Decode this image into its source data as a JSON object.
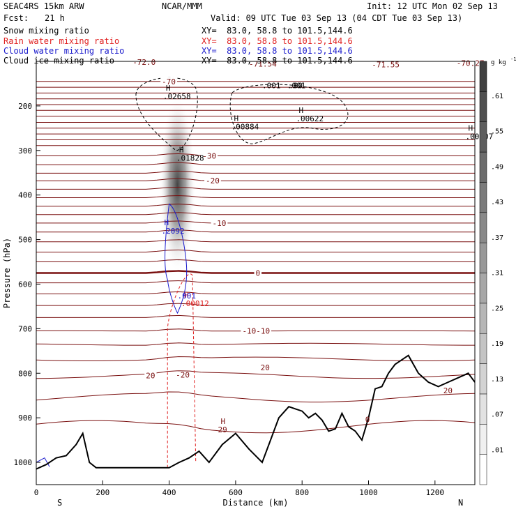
{
  "header": {
    "model": "SEAC4RS 15km ARW",
    "center": "NCAR/MMM",
    "init": "Init: 12 UTC Mon 02 Sep 13",
    "fcst_label": "Fcst:",
    "fcst_value": "21 h",
    "valid": "Valid: 09 UTC Tue 03 Sep 13 (04 CDT Tue 03 Sep 13)"
  },
  "legend": [
    {
      "name": "Snow mixing ratio",
      "color": "#000000",
      "xy": "XY=  83.0, 58.8 to 101.5,144.6"
    },
    {
      "name": "Rain water mixing ratio",
      "color": "#e02020",
      "xy": "XY=  83.0, 58.8 to 101.5,144.6"
    },
    {
      "name": "Cloud water mixing ratio",
      "color": "#1a1acc",
      "xy": "XY=  83.0, 58.8 to 101.5,144.6"
    },
    {
      "name": "Cloud ice mixing ratio",
      "color": "#000000",
      "xy": "XY=  83.0, 58.8 to 101.5,144.6"
    }
  ],
  "colors": {
    "temperature": "#7a1010",
    "terrain": "#000000",
    "rain": "#e02020",
    "cloud_water": "#1a1acc",
    "ice": "#000000"
  },
  "chart_data": {
    "type": "heatmap",
    "title": "SEAC4RS 15km ARW",
    "xlabel": "Distance (km)",
    "ylabel": "Pressure (hPa)",
    "xlim": [
      0,
      1320
    ],
    "ylim": [
      1050,
      100
    ],
    "x_ticks": [
      0,
      200,
      400,
      600,
      800,
      1000,
      1200
    ],
    "y_ticks": [
      200,
      300,
      400,
      500,
      600,
      700,
      800,
      900,
      1000
    ],
    "x_end_labels": {
      "left": "S",
      "right": "N"
    },
    "colorbar": {
      "unit_label": "g kg",
      "unit_sup": "-1",
      "ticks": [
        ".01",
        ".07",
        ".13",
        ".19",
        ".25",
        ".31",
        ".37",
        ".43",
        ".49",
        ".55",
        ".61"
      ],
      "levels": 14
    },
    "temperature_levels": [
      {
        "p": 145,
        "label": "-70",
        "x": 378
      },
      {
        "p": 158
      },
      {
        "p": 171
      },
      {
        "p": 184
      },
      {
        "p": 197
      },
      {
        "p": 210
      },
      {
        "p": 223
      },
      {
        "p": 237
      },
      {
        "p": 250
      },
      {
        "p": 263
      },
      {
        "p": 276
      },
      {
        "p": 289
      },
      {
        "p": 312,
        "label": "-30",
        "x": 500
      },
      {
        "p": 332
      },
      {
        "p": 351
      },
      {
        "p": 368,
        "label": "-20",
        "x": 510
      },
      {
        "p": 387
      },
      {
        "p": 406
      },
      {
        "p": 425
      },
      {
        "p": 444
      },
      {
        "p": 463,
        "label": "-10",
        "x": 530
      },
      {
        "p": 483
      },
      {
        "p": 505
      },
      {
        "p": 528
      },
      {
        "p": 550
      },
      {
        "p": 575,
        "label": "0",
        "x": 660,
        "bold": true
      },
      {
        "p": 597
      },
      {
        "p": 622
      },
      {
        "p": 648
      },
      {
        "p": 675
      },
      {
        "p": 705,
        "label": "-10-10",
        "x": 620
      },
      {
        "p": 735
      },
      {
        "p": 768
      },
      {
        "p": 805,
        "label": "20",
        "x": 330
      },
      {
        "p": 855
      },
      {
        "p": 920
      }
    ],
    "temperature_labels": [
      {
        "text": "-71.54",
        "x": 640,
        "p": 112
      },
      {
        "text": "-71.55",
        "x": 1010,
        "p": 113
      },
      {
        "text": "-70.27",
        "x": 1265,
        "p": 110
      },
      {
        "text": "-72.0",
        "x": 290,
        "p": 108
      },
      {
        "text": "-20",
        "x": 420,
        "p": 810
      },
      {
        "text": "20",
        "x": 675,
        "p": 793
      },
      {
        "text": "20",
        "x": 1225,
        "p": 845
      },
      {
        "text": "0",
        "x": 990,
        "p": 910
      }
    ],
    "extrema": [
      {
        "letter": "H",
        "value": ".02658",
        "x": 390,
        "p": 180,
        "color": "#000000"
      },
      {
        "letter": "H",
        "value": ".00884",
        "x": 595,
        "p": 248,
        "color": "#000000"
      },
      {
        "letter": "H",
        "value": ".00622",
        "x": 790,
        "p": 230,
        "color": "#000000"
      },
      {
        "letter": "H",
        "value": ".00007",
        "x": 1300,
        "p": 270,
        "color": "#000000"
      },
      {
        "letter": "H",
        "value": ".01828",
        "x": 430,
        "p": 318,
        "color": "#000000"
      },
      {
        "letter": "H",
        "value": ".2092",
        "x": 385,
        "p": 482,
        "color": "#1a1acc"
      },
      {
        "letter": "H",
        "value": ".00012",
        "x": 445,
        "p": 645,
        "color": "#e02020"
      },
      {
        "letter": "H",
        "value": "29",
        "x": 555,
        "p": 928,
        "color": "#7a1010"
      }
    ],
    "contour_labels": [
      {
        "text": ".001",
        "x": 680,
        "p": 160,
        "color": "#000000"
      },
      {
        "text": ".001",
        "x": 755,
        "p": 160,
        "color": "#000000"
      },
      {
        "text": ".001",
        "x": 425,
        "p": 632,
        "color": "#1a1acc"
      },
      {
        "text": ".00",
        "x": 760,
        "p": 160,
        "color": "#000000"
      }
    ],
    "terrain": {
      "x": [
        0,
        30,
        60,
        90,
        120,
        140,
        160,
        180,
        200,
        400,
        430,
        460,
        490,
        520,
        560,
        600,
        640,
        680,
        700,
        730,
        760,
        780,
        800,
        820,
        840,
        860,
        880,
        900,
        920,
        940,
        960,
        980,
        1000,
        1020,
        1040,
        1060,
        1080,
        1100,
        1120,
        1150,
        1180,
        1210,
        1240,
        1270,
        1300,
        1320
      ],
      "p": [
        1015,
        1005,
        990,
        985,
        960,
        935,
        1000,
        1012,
        1012,
        1012,
        1000,
        990,
        975,
        1000,
        960,
        935,
        970,
        1000,
        960,
        900,
        875,
        880,
        885,
        900,
        890,
        905,
        930,
        925,
        890,
        920,
        930,
        950,
        900,
        835,
        830,
        800,
        780,
        770,
        760,
        800,
        820,
        830,
        820,
        810,
        800,
        820
      ]
    },
    "cloud_ice_field": {
      "x_center": 425,
      "p_top": 180,
      "p_bottom": 575,
      "peak": 0.61
    },
    "ylabel_ticks_format": "hPa"
  }
}
